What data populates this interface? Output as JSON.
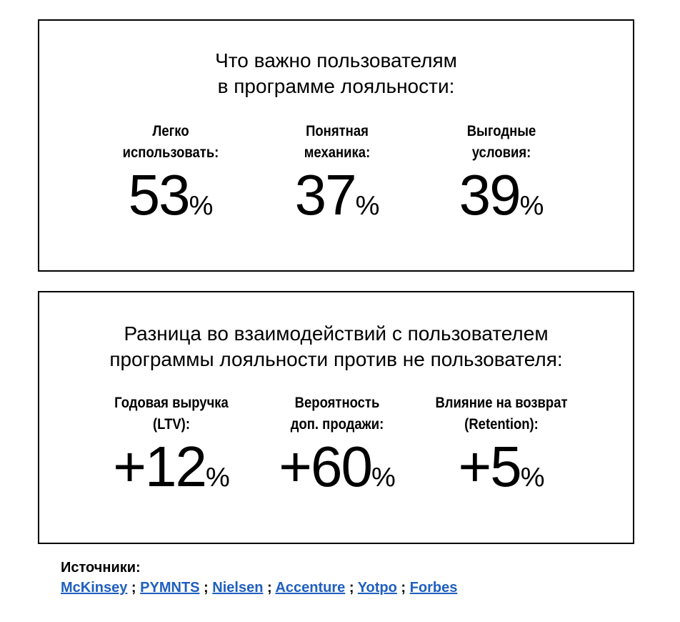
{
  "card1": {
    "title_lines": [
      "Что важно пользователям",
      "в программе лояльности:"
    ],
    "stats": [
      {
        "label_lines": [
          "Легко",
          "использовать:"
        ],
        "value": "53",
        "unit": "%"
      },
      {
        "label_lines": [
          "Понятная",
          "механика:"
        ],
        "value": "37",
        "unit": "%"
      },
      {
        "label_lines": [
          "Выгодные",
          "условия:"
        ],
        "value": "39",
        "unit": "%"
      }
    ]
  },
  "card2": {
    "title_lines": [
      "Разница во взаимодействий с пользователем",
      "программы лояльности против не пользователя:"
    ],
    "stats": [
      {
        "label_lines": [
          "Годовая выручка",
          "(LTV):"
        ],
        "value": "+12",
        "unit": "%"
      },
      {
        "label_lines": [
          "Вероятность",
          "доп. продажи:"
        ],
        "value": "+60",
        "unit": "%"
      },
      {
        "label_lines": [
          "Влияние на возврат",
          "(Retention):"
        ],
        "value": "+5",
        "unit": "%"
      }
    ]
  },
  "sources": {
    "title": "Источники:",
    "separator": " ; ",
    "links": [
      "McKinsey",
      "PYMNTS",
      "Nielsen",
      "Accenture",
      "Yotpo",
      "Forbes"
    ],
    "link_color": "#1f5fbf"
  }
}
